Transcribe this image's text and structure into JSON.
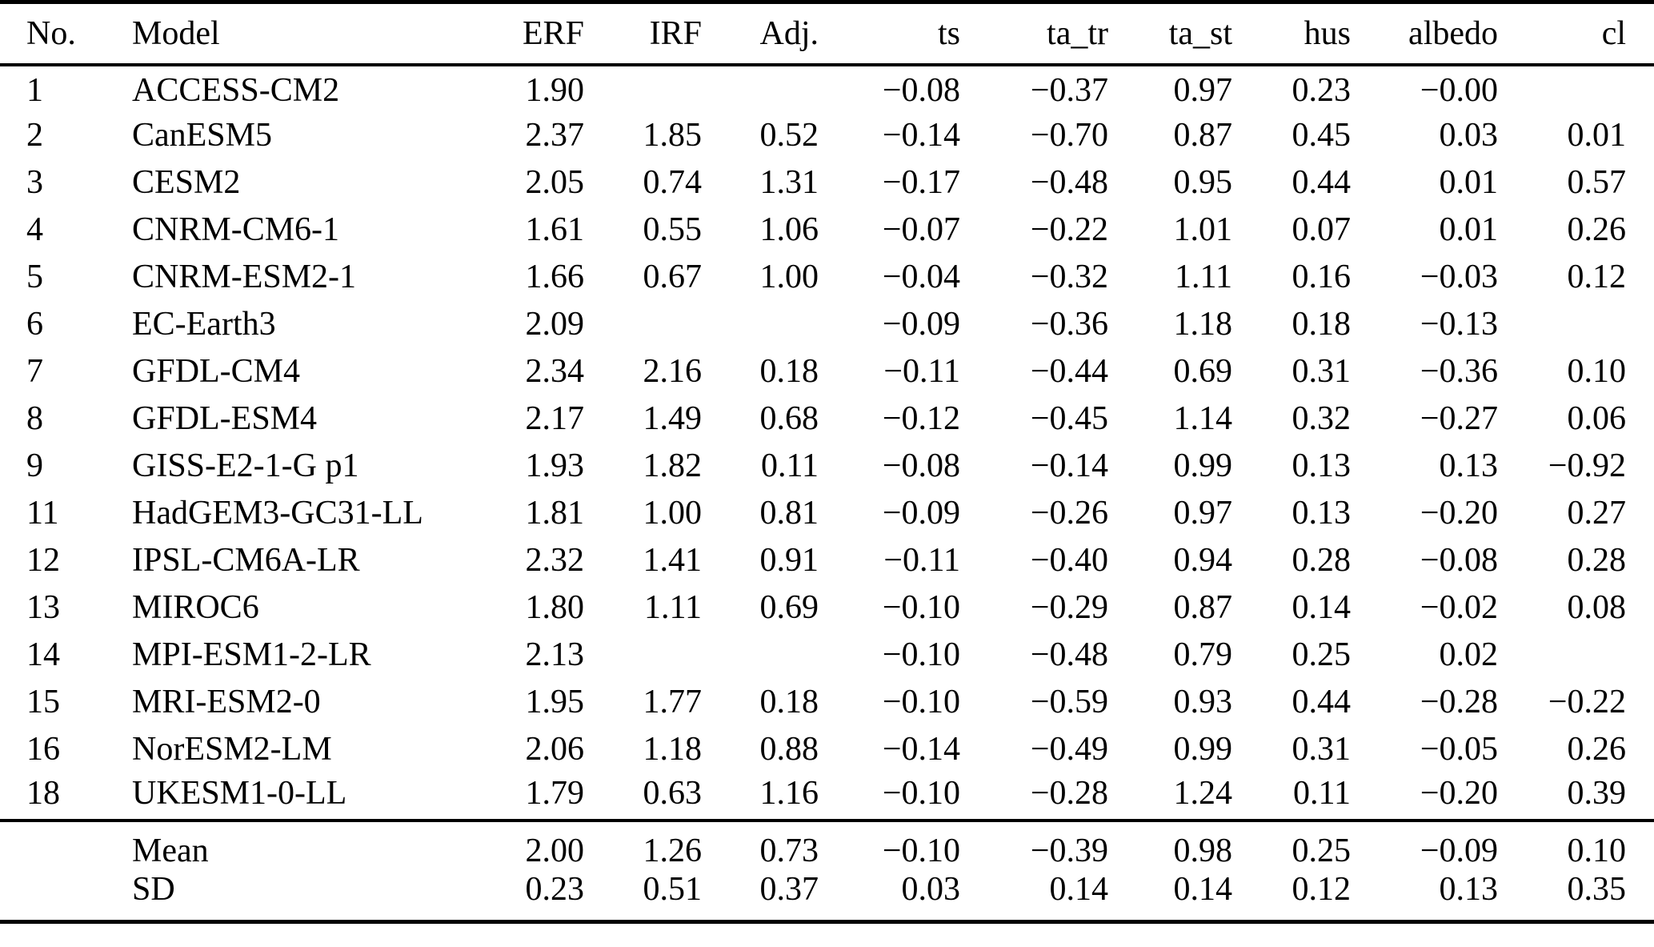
{
  "colors": {
    "background": "#ffffff",
    "text": "#000000",
    "rule": "#000000"
  },
  "table": {
    "columns": [
      {
        "key": "no",
        "label": "No.",
        "align": "left"
      },
      {
        "key": "model",
        "label": "Model",
        "align": "left"
      },
      {
        "key": "erf",
        "label": "ERF",
        "align": "right"
      },
      {
        "key": "irf",
        "label": "IRF",
        "align": "right"
      },
      {
        "key": "adj",
        "label": "Adj.",
        "align": "right"
      },
      {
        "key": "ts",
        "label": "ts",
        "align": "right"
      },
      {
        "key": "ta_tr",
        "label": "ta_tr",
        "align": "right"
      },
      {
        "key": "ta_st",
        "label": "ta_st",
        "align": "right"
      },
      {
        "key": "hus",
        "label": "hus",
        "align": "right"
      },
      {
        "key": "albedo",
        "label": "albedo",
        "align": "right"
      },
      {
        "key": "cl",
        "label": "cl",
        "align": "right"
      }
    ],
    "rows": [
      {
        "no": "1",
        "model": "ACCESS-CM2",
        "erf": "1.90",
        "irf": "",
        "adj": "",
        "ts": "−0.08",
        "ta_tr": "−0.37",
        "ta_st": "0.97",
        "hus": "0.23",
        "albedo": "−0.00",
        "cl": ""
      },
      {
        "no": "2",
        "model": "CanESM5",
        "erf": "2.37",
        "irf": "1.85",
        "adj": "0.52",
        "ts": "−0.14",
        "ta_tr": "−0.70",
        "ta_st": "0.87",
        "hus": "0.45",
        "albedo": "0.03",
        "cl": "0.01"
      },
      {
        "no": "3",
        "model": "CESM2",
        "erf": "2.05",
        "irf": "0.74",
        "adj": "1.31",
        "ts": "−0.17",
        "ta_tr": "−0.48",
        "ta_st": "0.95",
        "hus": "0.44",
        "albedo": "0.01",
        "cl": "0.57"
      },
      {
        "no": "4",
        "model": "CNRM-CM6-1",
        "erf": "1.61",
        "irf": "0.55",
        "adj": "1.06",
        "ts": "−0.07",
        "ta_tr": "−0.22",
        "ta_st": "1.01",
        "hus": "0.07",
        "albedo": "0.01",
        "cl": "0.26"
      },
      {
        "no": "5",
        "model": "CNRM-ESM2-1",
        "erf": "1.66",
        "irf": "0.67",
        "adj": "1.00",
        "ts": "−0.04",
        "ta_tr": "−0.32",
        "ta_st": "1.11",
        "hus": "0.16",
        "albedo": "−0.03",
        "cl": "0.12"
      },
      {
        "no": "6",
        "model": "EC-Earth3",
        "erf": "2.09",
        "irf": "",
        "adj": "",
        "ts": "−0.09",
        "ta_tr": "−0.36",
        "ta_st": "1.18",
        "hus": "0.18",
        "albedo": "−0.13",
        "cl": ""
      },
      {
        "no": "7",
        "model": "GFDL-CM4",
        "erf": "2.34",
        "irf": "2.16",
        "adj": "0.18",
        "ts": "−0.11",
        "ta_tr": "−0.44",
        "ta_st": "0.69",
        "hus": "0.31",
        "albedo": "−0.36",
        "cl": "0.10"
      },
      {
        "no": "8",
        "model": "GFDL-ESM4",
        "erf": "2.17",
        "irf": "1.49",
        "adj": "0.68",
        "ts": "−0.12",
        "ta_tr": "−0.45",
        "ta_st": "1.14",
        "hus": "0.32",
        "albedo": "−0.27",
        "cl": "0.06"
      },
      {
        "no": "9",
        "model": "GISS-E2-1-G p1",
        "erf": "1.93",
        "irf": "1.82",
        "adj": "0.11",
        "ts": "−0.08",
        "ta_tr": "−0.14",
        "ta_st": "0.99",
        "hus": "0.13",
        "albedo": "0.13",
        "cl": "−0.92"
      },
      {
        "no": "11",
        "model": "HadGEM3-GC31-LL",
        "erf": "1.81",
        "irf": "1.00",
        "adj": "0.81",
        "ts": "−0.09",
        "ta_tr": "−0.26",
        "ta_st": "0.97",
        "hus": "0.13",
        "albedo": "−0.20",
        "cl": "0.27"
      },
      {
        "no": "12",
        "model": "IPSL-CM6A-LR",
        "erf": "2.32",
        "irf": "1.41",
        "adj": "0.91",
        "ts": "−0.11",
        "ta_tr": "−0.40",
        "ta_st": "0.94",
        "hus": "0.28",
        "albedo": "−0.08",
        "cl": "0.28"
      },
      {
        "no": "13",
        "model": "MIROC6",
        "erf": "1.80",
        "irf": "1.11",
        "adj": "0.69",
        "ts": "−0.10",
        "ta_tr": "−0.29",
        "ta_st": "0.87",
        "hus": "0.14",
        "albedo": "−0.02",
        "cl": "0.08"
      },
      {
        "no": "14",
        "model": "MPI-ESM1-2-LR",
        "erf": "2.13",
        "irf": "",
        "adj": "",
        "ts": "−0.10",
        "ta_tr": "−0.48",
        "ta_st": "0.79",
        "hus": "0.25",
        "albedo": "0.02",
        "cl": ""
      },
      {
        "no": "15",
        "model": "MRI-ESM2-0",
        "erf": "1.95",
        "irf": "1.77",
        "adj": "0.18",
        "ts": "−0.10",
        "ta_tr": "−0.59",
        "ta_st": "0.93",
        "hus": "0.44",
        "albedo": "−0.28",
        "cl": "−0.22"
      },
      {
        "no": "16",
        "model": "NorESM2-LM",
        "erf": "2.06",
        "irf": "1.18",
        "adj": "0.88",
        "ts": "−0.14",
        "ta_tr": "−0.49",
        "ta_st": "0.99",
        "hus": "0.31",
        "albedo": "−0.05",
        "cl": "0.26"
      },
      {
        "no": "18",
        "model": "UKESM1-0-LL",
        "erf": "1.79",
        "irf": "0.63",
        "adj": "1.16",
        "ts": "−0.10",
        "ta_tr": "−0.28",
        "ta_st": "1.24",
        "hus": "0.11",
        "albedo": "−0.20",
        "cl": "0.39"
      }
    ],
    "summary_rows": [
      {
        "no": "",
        "model": "Mean",
        "erf": "2.00",
        "irf": "1.26",
        "adj": "0.73",
        "ts": "−0.10",
        "ta_tr": "−0.39",
        "ta_st": "0.98",
        "hus": "0.25",
        "albedo": "−0.09",
        "cl": "0.10"
      },
      {
        "no": "",
        "model": "SD",
        "erf": "0.23",
        "irf": "0.51",
        "adj": "0.37",
        "ts": "0.03",
        "ta_tr": "0.14",
        "ta_st": "0.14",
        "hus": "0.12",
        "albedo": "0.13",
        "cl": "0.35"
      }
    ]
  }
}
